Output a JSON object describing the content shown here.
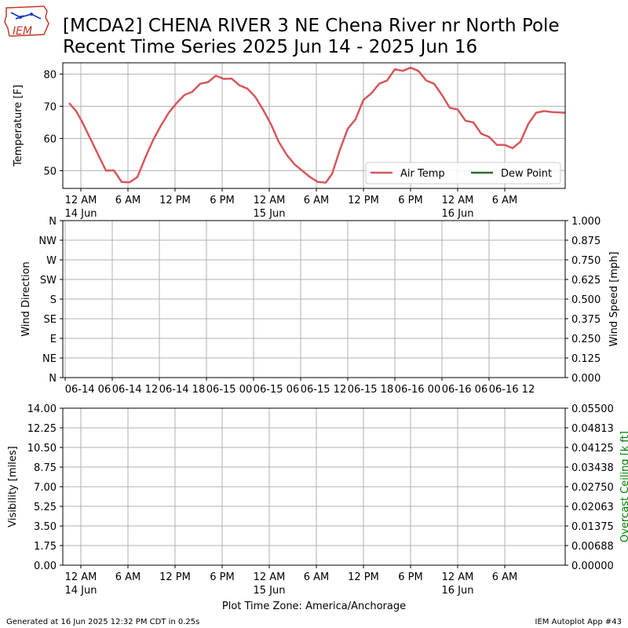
{
  "header": {
    "title_line1": "[MCDA2] CHENA RIVER 3 NE Chena River nr North Pole",
    "title_line2": "Recent Time Series 2025 Jun 14 - 2025 Jun 16",
    "logo_text": "IEM"
  },
  "footer": {
    "generated": "Generated at 16 Jun 2025 12:32 PM CDT in 0.25s",
    "app": "IEM Autoplot App #43",
    "timezone_label": "Plot Time Zone: America/Anchorage"
  },
  "colors": {
    "air_temp": "#d6575c",
    "dew_point": "#2e6b2e",
    "ceiling_axis": "#008000",
    "grid": "#b0b0b0"
  },
  "chart_data": [
    {
      "type": "line",
      "panel": "temperature",
      "ylabel": "Temperature [F]",
      "ylim": [
        44.5,
        83.5
      ],
      "yticks": [
        50,
        60,
        70,
        80
      ],
      "grid": true,
      "legend": {
        "placement": "lower-right",
        "entries": [
          "Air Temp",
          "Dew Point"
        ]
      },
      "xtick_labels": [
        {
          "x": 12,
          "line1": "12 AM",
          "line2": "14 Jun"
        },
        {
          "x": 18,
          "line1": "6 AM",
          "line2": ""
        },
        {
          "x": 24,
          "line1": "12 PM",
          "line2": ""
        },
        {
          "x": 30,
          "line1": "6 PM",
          "line2": ""
        },
        {
          "x": 36,
          "line1": "12 AM",
          "line2": "15 Jun"
        },
        {
          "x": 42,
          "line1": "6 AM",
          "line2": ""
        },
        {
          "x": 48,
          "line1": "12 PM",
          "line2": ""
        },
        {
          "x": 54,
          "line1": "6 PM",
          "line2": ""
        },
        {
          "x": 60,
          "line1": "12 AM",
          "line2": "16 Jun"
        },
        {
          "x": 66,
          "line1": "6 AM",
          "line2": ""
        }
      ],
      "xlim": [
        9.7,
        73.7
      ],
      "series": [
        {
          "name": "Air Temp",
          "x": [
            10.5,
            11.4,
            12.2,
            13.2,
            14.2,
            15.2,
            16.2,
            17.2,
            18.2,
            19.2,
            20.2,
            21.2,
            22.2,
            23.2,
            24.2,
            25.2,
            26.2,
            27.2,
            28.2,
            29.2,
            30.2,
            31.2,
            32.2,
            33.2,
            34.2,
            35.2,
            36.2,
            37.2,
            38.2,
            39.2,
            40.2,
            41.2,
            42.2,
            43.2,
            44.0,
            45.0,
            46.0,
            47.0,
            48.0,
            49.0,
            50.0,
            51.0,
            52.0,
            53.0,
            54.0,
            55.0,
            56.0,
            57.0,
            58.0,
            59.0,
            60.0,
            61.0,
            62.0,
            63.0,
            64.0,
            65.0,
            66.0,
            67.0,
            68.0,
            69.0,
            70.0,
            71.0,
            72.0,
            73.7
          ],
          "y": [
            71.0,
            68.5,
            65.0,
            60.0,
            55.0,
            50.0,
            50.1,
            46.5,
            46.4,
            48.0,
            54.0,
            59.5,
            64.0,
            68.0,
            71.0,
            73.5,
            74.5,
            77.0,
            77.5,
            79.5,
            78.5,
            78.6,
            76.5,
            75.5,
            73.0,
            69.0,
            64.5,
            59.0,
            55.0,
            52.0,
            50.0,
            48.0,
            46.5,
            46.3,
            49.0,
            56.5,
            63.0,
            66.0,
            72.0,
            74.0,
            77.0,
            78.0,
            81.5,
            81.0,
            82.0,
            81.0,
            78.0,
            77.0,
            73.5,
            69.5,
            69.0,
            65.5,
            65.0,
            61.5,
            60.5,
            58.0,
            58.0,
            57.0,
            59.0,
            64.5,
            68.0,
            68.5,
            68.2,
            68.0
          ]
        },
        {
          "name": "Dew Point",
          "x": [],
          "y": []
        }
      ]
    },
    {
      "type": "line",
      "panel": "wind",
      "ylabel": "Wind Direction",
      "ylabel_right": "Wind Speed [mph]",
      "ylim": [
        0,
        360
      ],
      "yticks": [
        0,
        45,
        90,
        135,
        180,
        225,
        270,
        315,
        360
      ],
      "ytick_labels": [
        "N",
        "NE",
        "E",
        "SE",
        "S",
        "SW",
        "W",
        "NW",
        "N"
      ],
      "ylim_right": [
        0,
        1
      ],
      "yticks_right": [
        "0.000",
        "0.125",
        "0.250",
        "0.375",
        "0.500",
        "0.625",
        "0.750",
        "0.875",
        "1.000"
      ],
      "grid": true,
      "xlim": [
        9.7,
        73.7
      ],
      "xtick_labels": [
        {
          "x": 10,
          "line1": "06-14 06"
        },
        {
          "x": 16,
          "line1": "06-14 12"
        },
        {
          "x": 22,
          "line1": "06-14 18"
        },
        {
          "x": 28,
          "line1": "06-15 00"
        },
        {
          "x": 34,
          "line1": "06-15 06"
        },
        {
          "x": 40,
          "line1": "06-15 12"
        },
        {
          "x": 46,
          "line1": "06-15 18"
        },
        {
          "x": 52,
          "line1": "06-16 00"
        },
        {
          "x": 58,
          "line1": "06-16 06"
        },
        {
          "x": 64,
          "line1": "06-16 12"
        }
      ],
      "series": []
    },
    {
      "type": "line",
      "panel": "visibility",
      "ylabel": "Visibility [miles]",
      "ylabel_right": "Overcast Ceiling [k ft]",
      "ylim": [
        0,
        14
      ],
      "yticks": [
        "0.00",
        "1.75",
        "3.50",
        "5.25",
        "7.00",
        "8.75",
        "10.50",
        "12.25",
        "14.00"
      ],
      "ylim_right": [
        0,
        0.055
      ],
      "yticks_right": [
        "0.00000",
        "0.00688",
        "0.01375",
        "0.02063",
        "0.02750",
        "0.03438",
        "0.04125",
        "0.04813",
        "0.05500"
      ],
      "grid": true,
      "xlim": [
        9.7,
        73.7
      ],
      "series": []
    }
  ]
}
